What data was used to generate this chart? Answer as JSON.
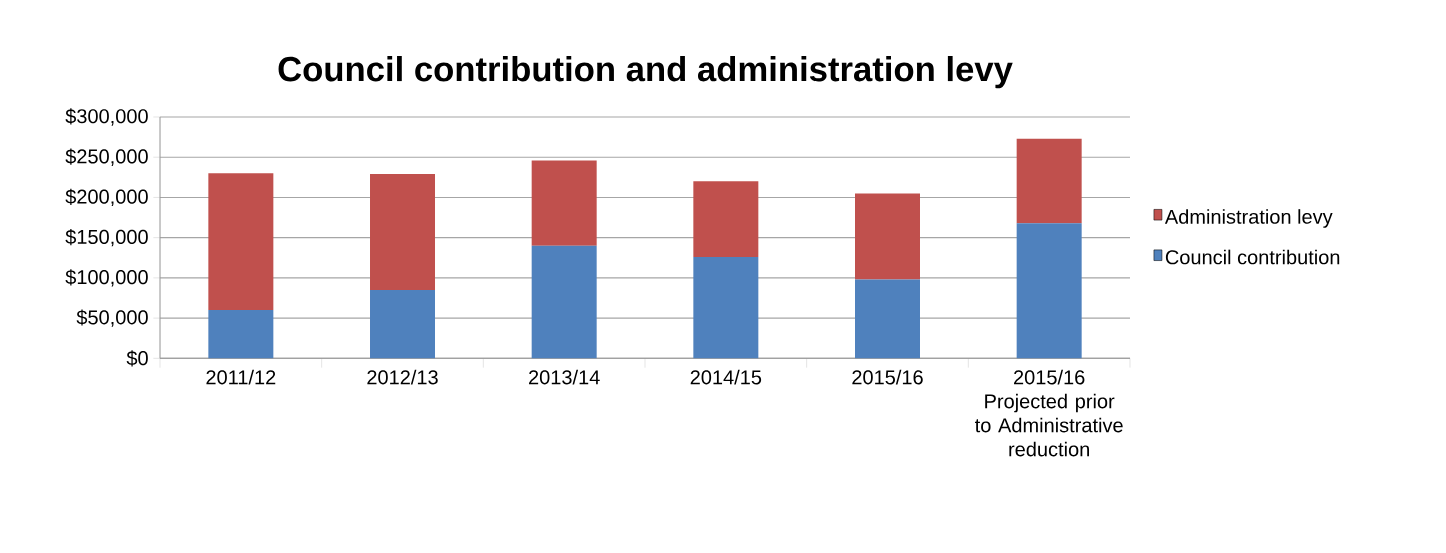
{
  "chart_data": {
    "type": "bar",
    "title": "Council contribution and administration levy",
    "categories": [
      "2011/12",
      "2012/13",
      "2013/14",
      "2014/15",
      "2015/16",
      "2015/16 Projected prior to Administrative reduction"
    ],
    "stacked": true,
    "series": [
      {
        "name": "Council contribution",
        "color": "#4f81bd",
        "values": [
          60000,
          85000,
          140000,
          126000,
          98000,
          168000
        ]
      },
      {
        "name": "Administration levy",
        "color": "#c0504d",
        "values": [
          170000,
          144000,
          106000,
          94000,
          107000,
          105000
        ]
      }
    ],
    "ylim": [
      0,
      300000
    ],
    "yticks": [
      {
        "value": 0,
        "label": "$0"
      },
      {
        "value": 50000,
        "label": "$50,000"
      },
      {
        "value": 100000,
        "label": "$100,000"
      },
      {
        "value": 150000,
        "label": "$150,000"
      },
      {
        "value": 200000,
        "label": "$200,000"
      },
      {
        "value": 250000,
        "label": "$250,000"
      },
      {
        "value": 300000,
        "label": "$300,000"
      }
    ],
    "grid": "y",
    "legend": "right"
  }
}
